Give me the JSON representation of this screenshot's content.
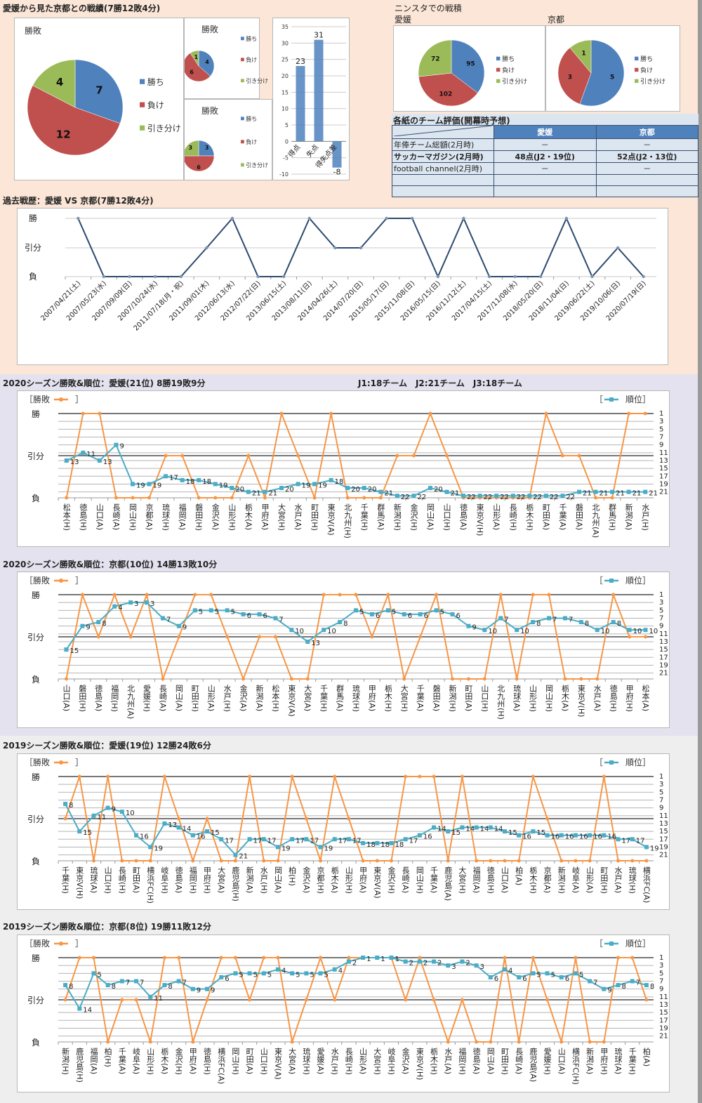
{
  "colors": {
    "win": "#4f81bd",
    "loss": "#c0504d",
    "draw": "#9bbb59",
    "line_result": "#f79646",
    "line_rank": "#4bacc6",
    "past_line": "#2c4a6e",
    "bar": "#4f81bd"
  },
  "top": {
    "title": "愛媛から見た京都との戦績(7勝12敗4分)",
    "legend": [
      "勝ち",
      "負け",
      "引き分け"
    ],
    "pie_main": {
      "title": "勝敗",
      "values": [
        7,
        12,
        4
      ]
    },
    "pie_small1": {
      "title": "勝敗",
      "values": [
        4,
        6,
        1
      ]
    },
    "pie_small2": {
      "title": "勝敗",
      "values": [
        3,
        6,
        3
      ]
    },
    "goals": {
      "categories": [
        "得点",
        "失点",
        "得失点差"
      ],
      "values": [
        23,
        31,
        -8
      ],
      "ylim": [
        -10,
        35
      ],
      "ticks": [
        35,
        30,
        25,
        20,
        15,
        10,
        5,
        0,
        -5,
        -10
      ]
    }
  },
  "ninsta": {
    "title": "ニンスタでの戦積",
    "ehime": {
      "label": "愛媛",
      "values": [
        95,
        102,
        72
      ]
    },
    "kyoto": {
      "label": "京都",
      "values": [
        5,
        3,
        1
      ]
    }
  },
  "evaluation": {
    "title": "各紙のチーム評価(開幕時予想)",
    "columns": [
      "愛媛",
      "京都"
    ],
    "rows": [
      {
        "label": "年俸チーム総額(2月時)",
        "ehime": "－",
        "kyoto": "－"
      },
      {
        "label": "サッカーマガジン(2月時)",
        "ehime": "48点(J2・19位)",
        "kyoto": "52点(J2・13位)",
        "bold": true
      },
      {
        "label": "football channel(2月時)",
        "ehime": "－",
        "kyoto": "－"
      },
      {
        "label": "",
        "ehime": "",
        "kyoto": ""
      },
      {
        "label": "",
        "ehime": "",
        "kyoto": ""
      }
    ]
  },
  "past": {
    "title": "過去戦歴：愛媛 VS 京都(7勝12敗4分)",
    "ylabels": [
      "勝",
      "引分",
      "負"
    ]
  },
  "section2020": {
    "league_note": "J1:18チーム　J2:21チーム　J3:18チーム"
  },
  "legend_labels": {
    "result": "［勝敗",
    "result_close": "］",
    "rank_open": "［",
    "rank": "順位］"
  },
  "result_axis": [
    "勝",
    "引分",
    "負"
  ],
  "rank_ticks": [
    1,
    3,
    5,
    7,
    9,
    11,
    13,
    15,
    17,
    19,
    21
  ],
  "chart_data": [
    {
      "id": "past",
      "type": "line",
      "title": "過去戦歴：愛媛 VS 京都(7勝12敗4分)",
      "yaxis": [
        "負",
        "引分",
        "勝"
      ],
      "x": [
        "2007/04/21(土)",
        "2007/05/23(水)",
        "2007/09/09(日)",
        "2007/10/24(水)",
        "2011/07/18(月・祝)",
        "2011/09/01(木)",
        "2012/06/13(水)",
        "2012/07/22(日)",
        "2013/06/15(土)",
        "2013/08/11(日)",
        "2014/04/26(土)",
        "2014/07/20(日)",
        "2015/05/17(日)",
        "2015/11/08(日)",
        "2016/05/15(日)",
        "2016/11/12(土)",
        "2017/04/15(土)",
        "2017/11/08(水)",
        "2018/05/20(日)",
        "2018/11/04(日)",
        "2019/06/22(土)",
        "2019/10/06(日)",
        "2020/07/19(日)"
      ],
      "results": [
        "W",
        "L",
        "L",
        "L",
        "L",
        "D",
        "W",
        "L",
        "L",
        "W",
        "D",
        "D",
        "W",
        "W",
        "L",
        "W",
        "L",
        "L",
        "L",
        "W",
        "L",
        "D",
        "L"
      ]
    },
    {
      "id": "e2020",
      "type": "line",
      "title": "2020シーズン勝敗&順位：愛媛(21位) 8勝19敗9分",
      "series_names": [
        "勝敗",
        "順位"
      ],
      "x": [
        "松本(H)",
        "徳島(H)",
        "山口(A)",
        "長崎(A)",
        "岡山(H)",
        "京都(A)",
        "琉球(H)",
        "福岡(A)",
        "磐田(H)",
        "金沢(A)",
        "山形(H)",
        "栃木(A)",
        "甲府(A)",
        "大宮(H)",
        "水戸(A)",
        "町田(H)",
        "東京V(A)",
        "北九州(H)",
        "千葉(H)",
        "群馬(A)",
        "新潟(H)",
        "金沢(H)",
        "岡山(A)",
        "山口(H)",
        "徳島(A)",
        "東京V(H)",
        "山形(A)",
        "長崎(H)",
        "栃木(H)",
        "町田(A)",
        "千葉(A)",
        "磐田(A)",
        "北九州(A)",
        "群馬(H)",
        "新潟(A)",
        "水戸(H)"
      ],
      "results": [
        "L",
        "W",
        "W",
        "L",
        "L",
        "L",
        "D",
        "D",
        "L",
        "L",
        "L",
        "D",
        "L",
        "W",
        "D",
        "L",
        "W",
        "L",
        "L",
        "L",
        "D",
        "D",
        "W",
        "D",
        "L",
        "L",
        "L",
        "L",
        "L",
        "W",
        "D",
        "D",
        "L",
        "L",
        "W",
        "W"
      ],
      "ranks": [
        13,
        11,
        13,
        9,
        19,
        19,
        17,
        18,
        18,
        19,
        20,
        21,
        21,
        20,
        19,
        19,
        18,
        20,
        20,
        21,
        22,
        22,
        20,
        21,
        22,
        22,
        22,
        22,
        22,
        22,
        22,
        21,
        21,
        21,
        21,
        21
      ]
    },
    {
      "id": "k2020",
      "type": "line",
      "title": "2020シーズン勝敗&順位：京都(10位) 14勝13敗10分",
      "series_names": [
        "勝敗",
        "順位"
      ],
      "x": [
        "山口(A)",
        "磐田(H)",
        "徳島(A)",
        "福岡(H)",
        "北九州(A)",
        "愛媛(H)",
        "長崎(A)",
        "岡山(A)",
        "町田(H)",
        "山形(A)",
        "水戸(H)",
        "金沢(A)",
        "新潟(A)",
        "松本(H)",
        "東京V(A)",
        "大宮(A)",
        "千葉(H)",
        "群馬(A)",
        "琉球(H)",
        "甲府(A)",
        "栃木(H)",
        "大宮(H)",
        "千葉(A)",
        "磐田(A)",
        "新潟(H)",
        "町田(A)",
        "山口(H)",
        "北九州(H)",
        "琉球(A)",
        "山形(H)",
        "岡山(H)",
        "栃木(A)",
        "東京V(H)",
        "水戸(A)",
        "徳島(H)",
        "甲府(H)",
        "松本(A)"
      ],
      "results": [
        "L",
        "W",
        "D",
        "W",
        "D",
        "W",
        "L",
        "D",
        "W",
        "W",
        "D",
        "L",
        "D",
        "D",
        "L",
        "L",
        "W",
        "W",
        "W",
        "D",
        "W",
        "L",
        "D",
        "W",
        "L",
        "L",
        "L",
        "W",
        "L",
        "W",
        "W",
        "L",
        "L",
        "L",
        "W",
        "D",
        "D"
      ],
      "ranks": [
        15,
        9,
        8,
        4,
        3,
        3,
        7,
        9,
        5,
        5,
        5,
        6,
        6,
        7,
        10,
        13,
        10,
        8,
        5,
        6,
        5,
        6,
        6,
        5,
        6,
        9,
        10,
        7,
        10,
        8,
        7,
        7,
        8,
        10,
        8,
        10,
        10
      ]
    },
    {
      "id": "e2019",
      "type": "line",
      "title": "2019シーズン勝敗&順位：愛媛(19位) 12勝24敗6分",
      "series_names": [
        "勝敗",
        "順位"
      ],
      "x": [
        "千葉(H)",
        "東京V(H)",
        "琉球(A)",
        "山口(H)",
        "長崎(H)",
        "町田(A)",
        "横浜FC(H)",
        "岐阜(H)",
        "徳島(A)",
        "福岡(H)",
        "甲府(H)",
        "大宮(A)",
        "鹿児島(H)",
        "新潟(A)",
        "水戸(H)",
        "岡山(A)",
        "柏(H)",
        "金沢(A)",
        "京都(H)",
        "栃木(A)",
        "山形(H)",
        "甲府(A)",
        "東京V(A)",
        "金沢(H)",
        "長崎(A)",
        "岡山(H)",
        "千葉(A)",
        "鹿児島(A)",
        "大宮(H)",
        "福岡(A)",
        "徳島(H)",
        "山口(A)",
        "柏(A)",
        "栃木(H)",
        "京都(A)",
        "新潟(H)",
        "岐阜(A)",
        "山形(A)",
        "町田(H)",
        "水戸(A)",
        "琉球(H)",
        "横浜FC(A)"
      ],
      "results": [
        "D",
        "W",
        "L",
        "W",
        "L",
        "L",
        "L",
        "W",
        "D",
        "L",
        "D",
        "L",
        "L",
        "W",
        "L",
        "L",
        "W",
        "D",
        "L",
        "W",
        "D",
        "L",
        "L",
        "L",
        "W",
        "W",
        "W",
        "L",
        "W",
        "L",
        "L",
        "L",
        "L",
        "W",
        "D",
        "L",
        "L",
        "L",
        "W",
        "L",
        "L",
        "L"
      ],
      "ranks": [
        8,
        15,
        11,
        9,
        10,
        16,
        19,
        13,
        14,
        16,
        15,
        17,
        21,
        17,
        17,
        19,
        17,
        17,
        19,
        17,
        17,
        18,
        18,
        18,
        17,
        16,
        14,
        15,
        14,
        14,
        14,
        15,
        16,
        15,
        16,
        16,
        16,
        16,
        16,
        17,
        17,
        19
      ]
    },
    {
      "id": "k2019",
      "type": "line",
      "title": "2019シーズン勝敗&順位：京都(8位) 19勝11敗12分",
      "series_names": [
        "勝敗",
        "順位"
      ],
      "x": [
        "新潟(H)",
        "鹿児島(H)",
        "福岡(A)",
        "柏(H)",
        "千葉(A)",
        "岐阜(A)",
        "山形(H)",
        "栃木(A)",
        "金沢(H)",
        "甲府(A)",
        "徳島(H)",
        "横浜FC(A)",
        "岡山(H)",
        "町田(A)",
        "山口(H)",
        "東京V(A)",
        "大宮(A)",
        "琉球(H)",
        "愛媛(A)",
        "水戸(H)",
        "長崎(H)",
        "山形(A)",
        "大宮(H)",
        "岐阜(H)",
        "金沢(A)",
        "東京V(H)",
        "栃木(H)",
        "水戸(A)",
        "福岡(H)",
        "徳島(A)",
        "岡山(A)",
        "町田(H)",
        "長崎(A)",
        "鹿児島(A)",
        "愛媛(H)",
        "山口(A)",
        "横浜FC(H)",
        "新潟(A)",
        "甲府(H)",
        "琉球(A)",
        "千葉(H)",
        "柏(A)"
      ],
      "results": [
        "D",
        "W",
        "W",
        "L",
        "D",
        "D",
        "L",
        "W",
        "W",
        "L",
        "D",
        "W",
        "W",
        "D",
        "W",
        "W",
        "L",
        "D",
        "W",
        "D",
        "W",
        "W",
        "W",
        "W",
        "D",
        "W",
        "D",
        "L",
        "D",
        "L",
        "L",
        "W",
        "L",
        "W",
        "D",
        "L",
        "W",
        "L",
        "L",
        "W",
        "W",
        "D"
      ],
      "ranks": [
        8,
        14,
        5,
        8,
        7,
        7,
        11,
        8,
        7,
        9,
        9,
        6,
        5,
        5,
        5,
        4,
        5,
        5,
        5,
        4,
        2,
        1,
        1,
        1,
        2,
        2,
        2,
        3,
        2,
        3,
        6,
        4,
        6,
        5,
        5,
        6,
        5,
        7,
        9,
        8,
        7,
        8
      ]
    }
  ]
}
